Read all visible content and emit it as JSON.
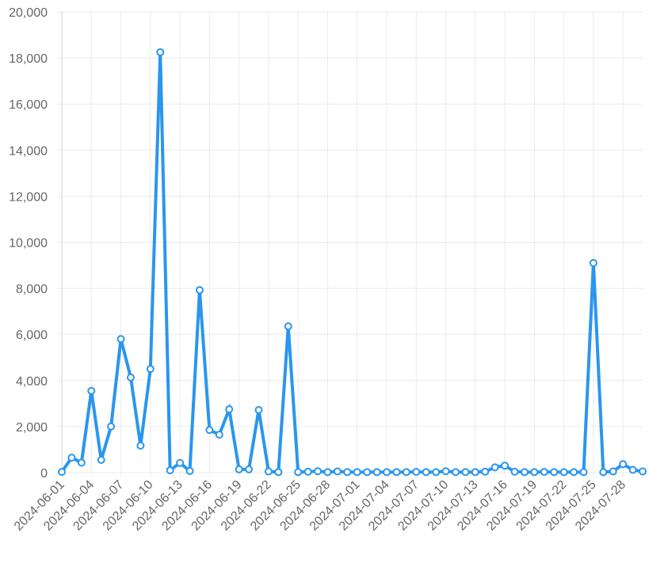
{
  "chart_data": {
    "type": "line",
    "categories": [
      "2024-06-01",
      null,
      null,
      "2024-06-04",
      null,
      null,
      "2024-06-07",
      null,
      null,
      "2024-06-10",
      null,
      null,
      "2024-06-13",
      null,
      null,
      "2024-06-16",
      null,
      null,
      "2024-06-19",
      null,
      null,
      "2024-06-22",
      null,
      null,
      "2024-06-25",
      null,
      null,
      "2024-06-28",
      null,
      null,
      "2024-07-01",
      null,
      null,
      "2024-07-04",
      null,
      null,
      "2024-07-07",
      null,
      null,
      "2024-07-10",
      null,
      null,
      "2024-07-13",
      null,
      null,
      "2024-07-16",
      null,
      null,
      "2024-07-19",
      null,
      null,
      "2024-07-22",
      null,
      null,
      "2024-07-25",
      null,
      null,
      "2024-07-28",
      null,
      null
    ],
    "values": [
      30,
      650,
      430,
      3550,
      550,
      2000,
      5800,
      4130,
      1170,
      4500,
      18250,
      100,
      420,
      70,
      7920,
      1850,
      1650,
      2750,
      140,
      140,
      2720,
      50,
      20,
      6350,
      20,
      40,
      60,
      20,
      50,
      20,
      20,
      20,
      20,
      20,
      20,
      20,
      30,
      20,
      20,
      60,
      20,
      20,
      20,
      40,
      230,
      300,
      40,
      20,
      20,
      30,
      20,
      20,
      20,
      20,
      9100,
      20,
      50,
      370,
      120,
      50
    ],
    "color": "#2a96ee",
    "ylim": [
      0,
      20000
    ],
    "yticks": [
      0,
      {
        "value": 2000,
        "label": "2,000"
      },
      {
        "value": 4000,
        "label": "4,000"
      },
      {
        "value": 6000,
        "label": "6,000"
      },
      {
        "value": 8000,
        "label": "8,000"
      },
      {
        "value": 10000,
        "label": "10,000"
      },
      {
        "value": 12000,
        "label": "12,000"
      },
      {
        "value": 14000,
        "label": "14,000"
      },
      {
        "value": 16000,
        "label": "16,000"
      },
      {
        "value": 18000,
        "label": "18,000"
      },
      {
        "value": 20000,
        "label": "20,000"
      }
    ],
    "grid": true
  }
}
